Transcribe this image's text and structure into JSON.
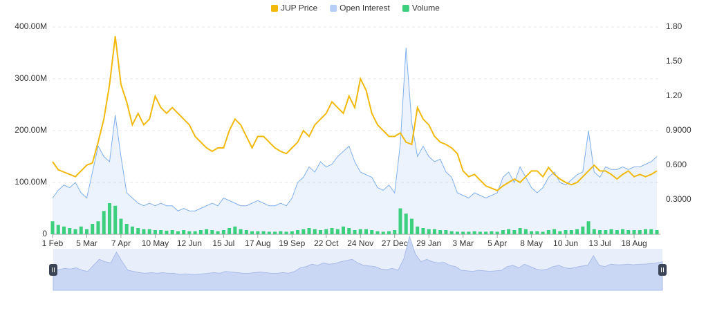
{
  "chart_data": {
    "type": "line",
    "categories": [
      "1 Feb",
      null,
      null,
      null,
      null,
      null,
      "5 Mar",
      null,
      null,
      null,
      null,
      null,
      "7 Apr",
      null,
      null,
      null,
      null,
      null,
      "10 May",
      null,
      null,
      null,
      null,
      null,
      "12 Jun",
      null,
      null,
      null,
      null,
      null,
      "15 Jul",
      null,
      null,
      null,
      null,
      null,
      "17 Aug",
      null,
      null,
      null,
      null,
      null,
      "19 Sep",
      null,
      null,
      null,
      null,
      null,
      "22 Oct",
      null,
      null,
      null,
      null,
      null,
      "24 Nov",
      null,
      null,
      null,
      null,
      null,
      "27 Dec",
      null,
      null,
      null,
      null,
      null,
      "29 Jan",
      null,
      null,
      null,
      null,
      null,
      "3 Mar",
      null,
      null,
      null,
      null,
      null,
      "5 Apr",
      null,
      null,
      null,
      null,
      null,
      "8 May",
      null,
      null,
      null,
      null,
      null,
      "10 Jun",
      null,
      null,
      null,
      null,
      null,
      "13 Jul",
      null,
      null,
      null,
      null,
      null,
      "18 Aug",
      null,
      null,
      null,
      null
    ],
    "series": [
      {
        "name": "JUP Price",
        "type": "line",
        "axis": "y2",
        "color": "#f0b90b",
        "values": [
          0.63,
          0.56,
          0.54,
          0.52,
          0.5,
          0.55,
          0.6,
          0.62,
          0.8,
          1.0,
          1.3,
          1.72,
          1.3,
          1.15,
          0.95,
          1.05,
          0.95,
          1.0,
          1.2,
          1.1,
          1.05,
          1.1,
          1.05,
          1.0,
          0.95,
          0.85,
          0.8,
          0.75,
          0.72,
          0.75,
          0.75,
          0.9,
          1.0,
          0.95,
          0.85,
          0.75,
          0.85,
          0.85,
          0.8,
          0.75,
          0.72,
          0.7,
          0.75,
          0.8,
          0.9,
          0.85,
          0.95,
          1.0,
          1.05,
          1.15,
          1.1,
          1.05,
          1.2,
          1.1,
          1.35,
          1.25,
          1.05,
          0.95,
          0.9,
          0.85,
          0.85,
          0.88,
          0.8,
          0.78,
          1.1,
          1.0,
          0.95,
          0.85,
          0.8,
          0.78,
          0.75,
          0.7,
          0.55,
          0.5,
          0.52,
          0.47,
          0.42,
          0.4,
          0.38,
          0.42,
          0.45,
          0.48,
          0.45,
          0.5,
          0.55,
          0.55,
          0.5,
          0.58,
          0.52,
          0.48,
          0.45,
          0.43,
          0.45,
          0.5,
          0.55,
          0.6,
          0.55,
          0.55,
          0.52,
          0.48,
          0.52,
          0.55,
          0.5,
          0.52,
          0.5,
          0.52,
          0.55
        ]
      },
      {
        "name": "Open Interest",
        "type": "area",
        "axis": "y",
        "color": "#7fb0ea",
        "values": [
          70000000,
          85000000,
          95000000,
          90000000,
          100000000,
          80000000,
          70000000,
          120000000,
          170000000,
          150000000,
          140000000,
          230000000,
          150000000,
          80000000,
          70000000,
          60000000,
          55000000,
          60000000,
          55000000,
          60000000,
          55000000,
          55000000,
          45000000,
          50000000,
          45000000,
          45000000,
          50000000,
          55000000,
          60000000,
          55000000,
          70000000,
          65000000,
          60000000,
          55000000,
          55000000,
          60000000,
          65000000,
          60000000,
          55000000,
          55000000,
          60000000,
          55000000,
          70000000,
          100000000,
          110000000,
          130000000,
          120000000,
          140000000,
          130000000,
          135000000,
          150000000,
          160000000,
          170000000,
          140000000,
          120000000,
          115000000,
          110000000,
          90000000,
          85000000,
          95000000,
          80000000,
          175000000,
          360000000,
          215000000,
          150000000,
          170000000,
          150000000,
          140000000,
          145000000,
          120000000,
          110000000,
          80000000,
          75000000,
          70000000,
          80000000,
          75000000,
          70000000,
          75000000,
          80000000,
          110000000,
          120000000,
          100000000,
          130000000,
          110000000,
          90000000,
          80000000,
          90000000,
          110000000,
          120000000,
          100000000,
          95000000,
          105000000,
          115000000,
          120000000,
          200000000,
          120000000,
          110000000,
          130000000,
          125000000,
          125000000,
          130000000,
          125000000,
          130000000,
          130000000,
          135000000,
          140000000,
          150000000
        ]
      },
      {
        "name": "Volume",
        "type": "bar",
        "axis": "y",
        "color": "#3ccf7e",
        "values": [
          25000000,
          18000000,
          15000000,
          12000000,
          10000000,
          15000000,
          10000000,
          20000000,
          25000000,
          45000000,
          60000000,
          55000000,
          30000000,
          20000000,
          15000000,
          12000000,
          10000000,
          10000000,
          8000000,
          8000000,
          7000000,
          8000000,
          6000000,
          8000000,
          6000000,
          6000000,
          8000000,
          10000000,
          8000000,
          6000000,
          8000000,
          12000000,
          15000000,
          10000000,
          8000000,
          6000000,
          6000000,
          6000000,
          5000000,
          5000000,
          6000000,
          5000000,
          6000000,
          8000000,
          10000000,
          12000000,
          10000000,
          8000000,
          10000000,
          12000000,
          10000000,
          15000000,
          12000000,
          8000000,
          10000000,
          10000000,
          8000000,
          6000000,
          5000000,
          6000000,
          8000000,
          50000000,
          40000000,
          30000000,
          15000000,
          12000000,
          10000000,
          10000000,
          8000000,
          8000000,
          6000000,
          5000000,
          5000000,
          5000000,
          6000000,
          5000000,
          5000000,
          6000000,
          5000000,
          8000000,
          10000000,
          8000000,
          12000000,
          10000000,
          6000000,
          6000000,
          5000000,
          8000000,
          10000000,
          6000000,
          8000000,
          8000000,
          10000000,
          15000000,
          25000000,
          10000000,
          8000000,
          8000000,
          10000000,
          8000000,
          10000000,
          8000000,
          8000000,
          8000000,
          10000000,
          10000000,
          8000000
        ]
      }
    ],
    "ylim": [
      0,
      400000000
    ],
    "yticks": [
      0,
      {
        "value": 100000000,
        "label": "100.00M"
      },
      {
        "value": 200000000,
        "label": "200.00M"
      },
      {
        "value": 300000000,
        "label": "300.00M"
      },
      {
        "value": 400000000,
        "label": "400.00M"
      }
    ],
    "y2lim": [
      0,
      1.8
    ],
    "y2ticks": [
      {
        "value": 0.3,
        "label": "0.3000"
      },
      {
        "value": 0.6,
        "label": "0.600"
      },
      {
        "value": 0.9,
        "label": "0.9000"
      },
      {
        "value": 1.2,
        "label": "1.20"
      },
      {
        "value": 1.5,
        "label": "1.50"
      },
      {
        "value": 1.8,
        "label": "1.80"
      }
    ],
    "grid": true,
    "legend": "top"
  }
}
